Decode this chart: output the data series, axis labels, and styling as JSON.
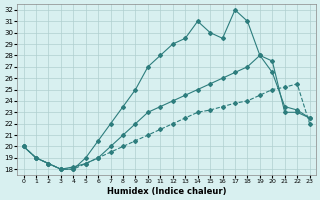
{
  "xlabel": "Humidex (Indice chaleur)",
  "bg_color": "#d8f0f0",
  "line_color": "#2d7d7d",
  "xlim": [
    -0.5,
    23.5
  ],
  "ylim": [
    17.5,
    32.5
  ],
  "xticks": [
    0,
    1,
    2,
    3,
    4,
    5,
    6,
    7,
    8,
    9,
    10,
    11,
    12,
    13,
    14,
    15,
    16,
    17,
    18,
    19,
    20,
    21,
    22,
    23
  ],
  "yticks": [
    18,
    19,
    20,
    21,
    22,
    23,
    24,
    25,
    26,
    27,
    28,
    29,
    30,
    31,
    32
  ],
  "line1_x": [
    0,
    1,
    2,
    3,
    4,
    5,
    6,
    7,
    8,
    9,
    10,
    11,
    12,
    13,
    14,
    15,
    16,
    17,
    18,
    19,
    20,
    21,
    22,
    23
  ],
  "line1_y": [
    20,
    19,
    18.5,
    18,
    18,
    18.5,
    19,
    19.5,
    20,
    20.5,
    21,
    21.5,
    22,
    22.5,
    23,
    23.2,
    23.5,
    23.8,
    24,
    24.5,
    25,
    25.2,
    25.5,
    22
  ],
  "line2_x": [
    0,
    1,
    2,
    3,
    4,
    5,
    6,
    7,
    8,
    9,
    10,
    11,
    12,
    13,
    14,
    15,
    16,
    17,
    18,
    19,
    20,
    21,
    22,
    23
  ],
  "line2_y": [
    20,
    19,
    18.5,
    18,
    18.2,
    18.5,
    19,
    20,
    21,
    22,
    23,
    23.5,
    24,
    24.5,
    25,
    25.5,
    26,
    26.5,
    27,
    28,
    26.5,
    23.5,
    23.2,
    22.5
  ],
  "line3_x": [
    0,
    1,
    2,
    3,
    4,
    5,
    6,
    7,
    8,
    9,
    10,
    11,
    12,
    13,
    14,
    15,
    16,
    17,
    18,
    19,
    20,
    21,
    22,
    23
  ],
  "line3_y": [
    20,
    19,
    18.5,
    18,
    18,
    19,
    20.5,
    22,
    23.5,
    25,
    27,
    28,
    29,
    29.5,
    31,
    30,
    29.5,
    32,
    31,
    28,
    27.5,
    23,
    23,
    22.5
  ],
  "grid_color": "#b0d0d0"
}
